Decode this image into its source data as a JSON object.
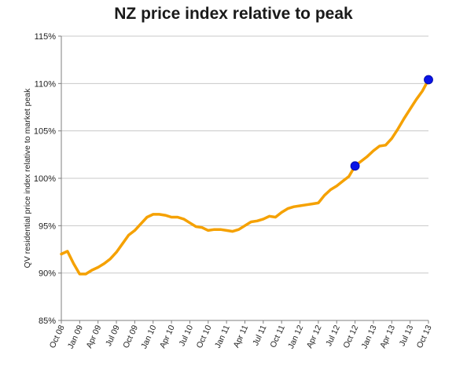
{
  "chart_data": {
    "type": "line",
    "title": "NZ price index relative to peak",
    "xlabel": "",
    "ylabel": "QV residential price index relative to market peak",
    "ylim": [
      85,
      115
    ],
    "ytick_labels": [
      "85%",
      "90%",
      "95%",
      "100%",
      "105%",
      "110%",
      "115%"
    ],
    "ytick_values": [
      85,
      90,
      95,
      100,
      105,
      110,
      115
    ],
    "xtick_labels": [
      "Oct 08",
      "Jan 09",
      "Apr 09",
      "Jul 09",
      "Oct 09",
      "Jan 10",
      "Apr 10",
      "Jul 10",
      "Oct 10",
      "Jan 11",
      "Apr 11",
      "Jul 11",
      "Oct 11",
      "Jan 12",
      "Apr 12",
      "Jul 12",
      "Oct 12",
      "Jan 13",
      "Apr 13",
      "Jul 13",
      "Oct 13"
    ],
    "grid": true,
    "legend": "none",
    "series": [
      {
        "color": "#f5a100",
        "x": [
          "Oct 08",
          "Nov 08",
          "Dec 08",
          "Jan 09",
          "Feb 09",
          "Mar 09",
          "Apr 09",
          "May 09",
          "Jun 09",
          "Jul 09",
          "Aug 09",
          "Sep 09",
          "Oct 09",
          "Nov 09",
          "Dec 09",
          "Jan 10",
          "Feb 10",
          "Mar 10",
          "Apr 10",
          "May 10",
          "Jun 10",
          "Jul 10",
          "Aug 10",
          "Sep 10",
          "Oct 10",
          "Nov 10",
          "Dec 10",
          "Jan 11",
          "Feb 11",
          "Mar 11",
          "Apr 11",
          "May 11",
          "Jun 11",
          "Jul 11",
          "Aug 11",
          "Sep 11",
          "Oct 11",
          "Nov 11",
          "Dec 11",
          "Jan 12",
          "Feb 12",
          "Mar 12",
          "Apr 12",
          "May 12",
          "Jun 12",
          "Jul 12",
          "Aug 12",
          "Sep 12",
          "Oct 12",
          "Nov 12",
          "Dec 12",
          "Jan 13",
          "Feb 13",
          "Mar 13",
          "Apr 13",
          "May 13",
          "Jun 13",
          "Jul 13",
          "Aug 13",
          "Sep 13",
          "Oct 13"
        ],
        "values": [
          92.0,
          92.3,
          91.0,
          89.9,
          89.9,
          90.3,
          90.6,
          91.0,
          91.5,
          92.2,
          93.1,
          94.0,
          94.5,
          95.2,
          95.9,
          96.2,
          96.2,
          96.1,
          95.9,
          95.9,
          95.7,
          95.3,
          94.9,
          94.8,
          94.5,
          94.6,
          94.6,
          94.5,
          94.4,
          94.6,
          95.0,
          95.4,
          95.5,
          95.7,
          96.0,
          95.9,
          96.4,
          96.8,
          97.0,
          97.1,
          97.2,
          97.3,
          97.4,
          98.2,
          98.8,
          99.2,
          99.7,
          100.2,
          101.3,
          101.8,
          102.3,
          102.9,
          103.4,
          103.5,
          104.2,
          105.2,
          106.3,
          107.3,
          108.3,
          109.2,
          110.4
        ]
      }
    ],
    "markers": [
      {
        "x": "Oct 12",
        "y": 101.3,
        "color": "#0a14e6"
      },
      {
        "x": "Oct 13",
        "y": 110.4,
        "color": "#0a14e6"
      }
    ]
  }
}
